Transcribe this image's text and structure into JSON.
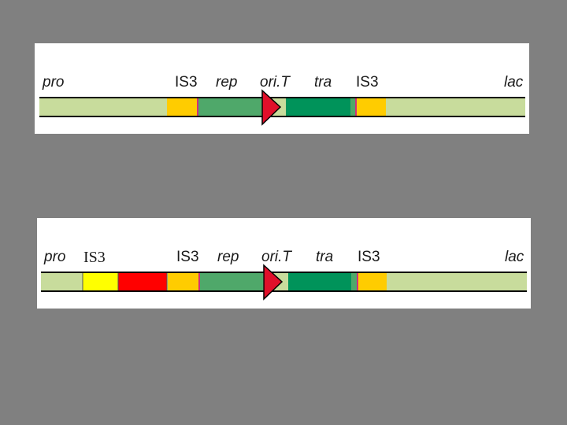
{
  "panels": [
    {
      "labels": {
        "pro": "pro",
        "is3_left": "IS3",
        "rep": "rep",
        "orit": "ori.T",
        "tra": "tra",
        "is3_right": "IS3",
        "lac": "lac"
      }
    },
    {
      "labels": {
        "pro": "pro",
        "inserted_is3": "IS3",
        "is3_left": "IS3",
        "rep": "rep",
        "orit": "ori.T",
        "tra": "tra",
        "is3_right": "IS3",
        "lac": "lac"
      }
    }
  ]
}
